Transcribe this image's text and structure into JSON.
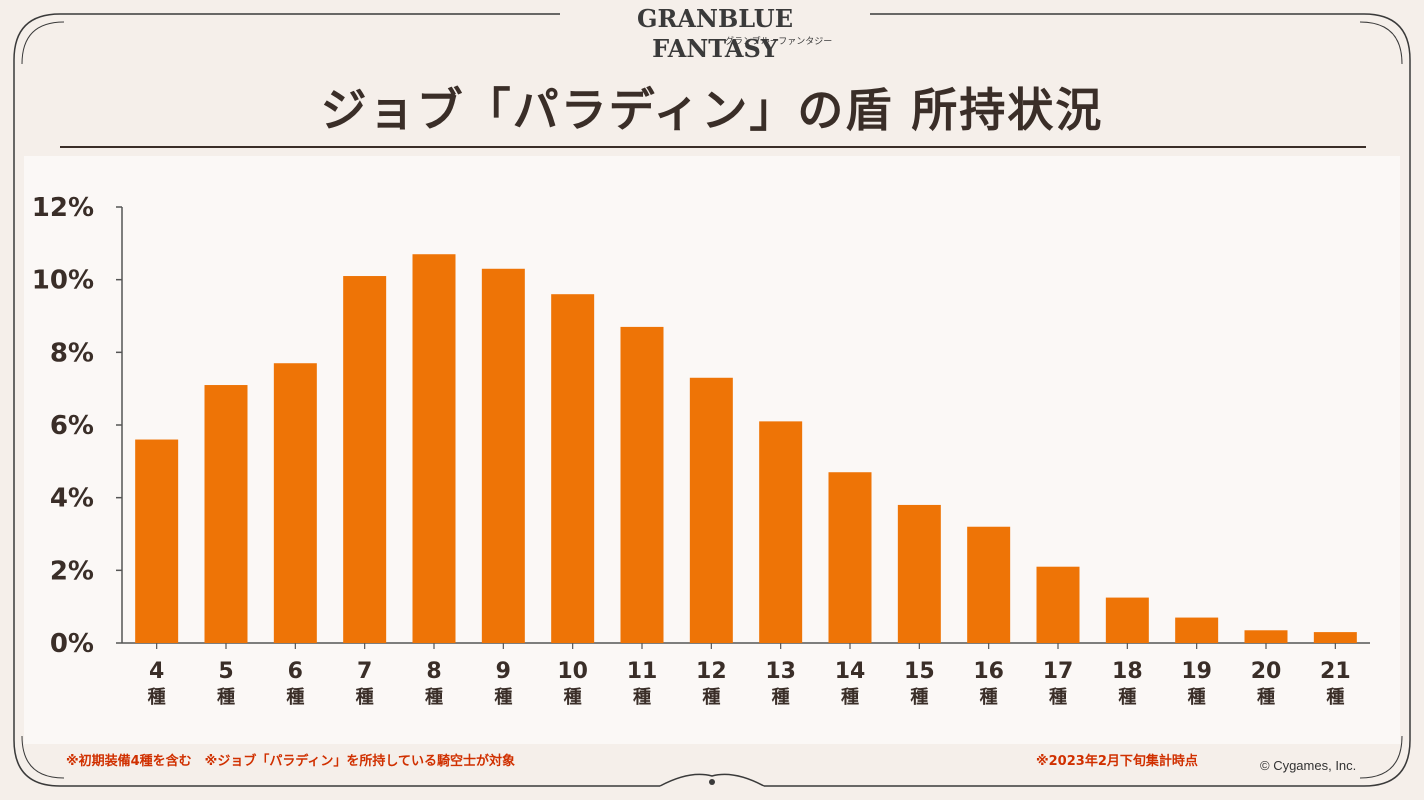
{
  "logo": {
    "main": "GRANBLUE FANTASY",
    "sub": "グランブルーファンタジー"
  },
  "title": "ジョブ「パラディン」の盾 所持状況",
  "notes": {
    "left": "※初期装備4種を含む　※ジョブ「パラディン」を所持している騎空士が対象",
    "right": "※2023年2月下旬集計時点",
    "copyright": "© Cygames, Inc."
  },
  "colors": {
    "bar": "#ee7406",
    "text": "#3a2e28",
    "note": "#d03000",
    "frame": "#3a3a3a"
  },
  "chart_data": {
    "type": "bar",
    "categories": [
      "4",
      "5",
      "6",
      "7",
      "8",
      "9",
      "10",
      "11",
      "12",
      "13",
      "14",
      "15",
      "16",
      "17",
      "18",
      "19",
      "20",
      "21"
    ],
    "category_unit": "種",
    "values": [
      5.6,
      7.1,
      7.7,
      10.1,
      10.7,
      10.3,
      9.6,
      8.7,
      7.3,
      6.1,
      4.7,
      3.8,
      3.2,
      2.1,
      1.25,
      0.7,
      0.35,
      0.3
    ],
    "yticks": [
      "0%",
      "2%",
      "4%",
      "6%",
      "8%",
      "10%",
      "12%"
    ],
    "ylim": [
      0,
      12
    ],
    "title": "ジョブ「パラディン」の盾 所持状況",
    "xlabel": "",
    "ylabel": "",
    "grid": false
  }
}
